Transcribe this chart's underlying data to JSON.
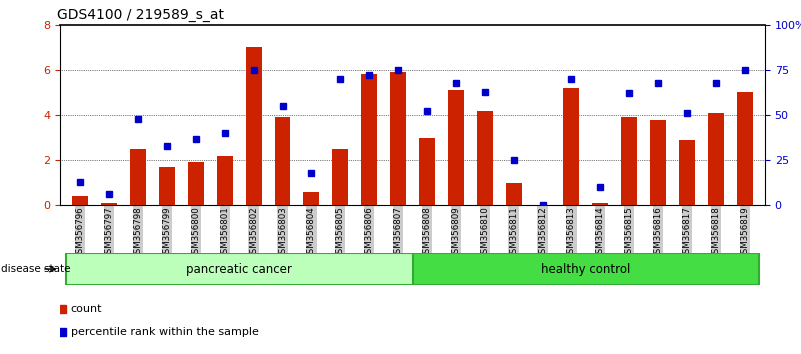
{
  "title": "GDS4100 / 219589_s_at",
  "samples": [
    "GSM356796",
    "GSM356797",
    "GSM356798",
    "GSM356799",
    "GSM356800",
    "GSM356801",
    "GSM356802",
    "GSM356803",
    "GSM356804",
    "GSM356805",
    "GSM356806",
    "GSM356807",
    "GSM356808",
    "GSM356809",
    "GSM356810",
    "GSM356811",
    "GSM356812",
    "GSM356813",
    "GSM356814",
    "GSM356815",
    "GSM356816",
    "GSM356817",
    "GSM356818",
    "GSM356819"
  ],
  "counts": [
    0.4,
    0.1,
    2.5,
    1.7,
    1.9,
    2.2,
    7.0,
    3.9,
    0.6,
    2.5,
    5.8,
    5.9,
    3.0,
    5.1,
    4.2,
    1.0,
    0.0,
    5.2,
    0.1,
    3.9,
    3.8,
    2.9,
    4.1,
    5.0
  ],
  "percentiles": [
    13,
    6,
    48,
    33,
    37,
    40,
    75,
    55,
    18,
    70,
    72,
    75,
    52,
    68,
    63,
    25,
    0,
    70,
    10,
    62,
    68,
    51,
    68,
    75
  ],
  "group_labels": [
    "pancreatic cancer",
    "healthy control"
  ],
  "bar_color": "#CC2200",
  "dot_color": "#0000CC",
  "ylim_left": [
    0,
    8
  ],
  "ylim_right": [
    0,
    100
  ],
  "yticks_left": [
    0,
    2,
    4,
    6,
    8
  ],
  "ytick_labels_left": [
    "0",
    "2",
    "4",
    "6",
    "8"
  ],
  "yticks_right": [
    0,
    25,
    50,
    75,
    100
  ],
  "ytick_labels_right": [
    "0",
    "25",
    "50",
    "75",
    "100%"
  ],
  "grid_values": [
    2,
    4,
    6
  ],
  "title_fontsize": 10,
  "disease_state_label": "disease state",
  "legend_count_label": "count",
  "legend_pct_label": "percentile rank within the sample",
  "bg_color": "#CCCCCC",
  "plot_bg_color": "#FFFFFF",
  "pc_color": "#BBFFBB",
  "hc_color": "#44DD44",
  "strip_border_color": "#33AA33"
}
